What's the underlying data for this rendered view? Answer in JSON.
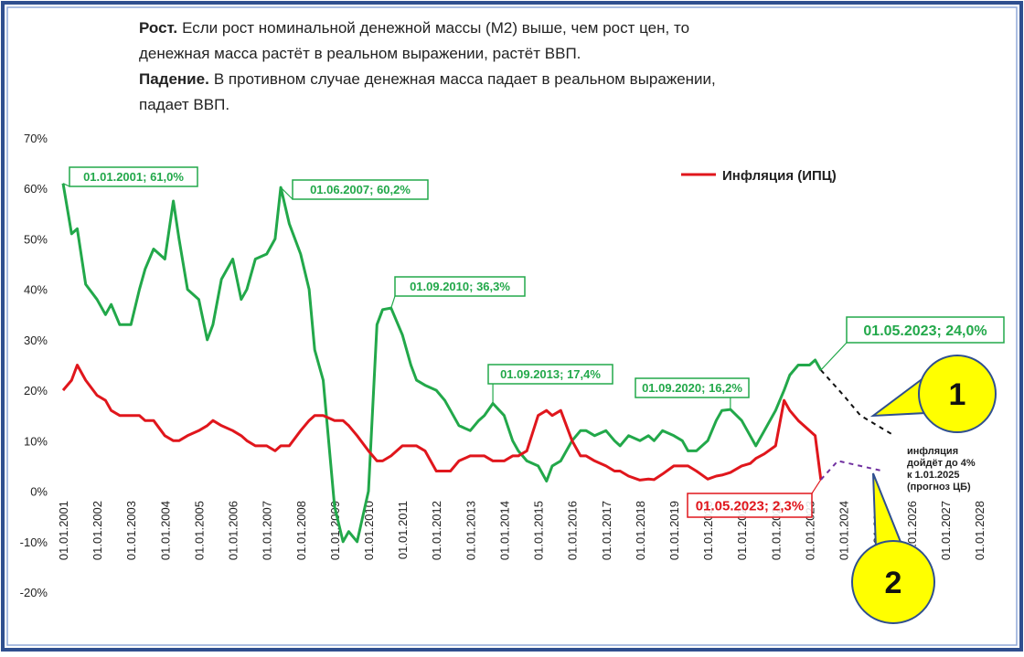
{
  "chart_data": {
    "type": "line",
    "header": [
      {
        "bold": "Рост.",
        "text": "Если рост номинальной денежной массы (M2) выше, чем рост цен,  то"
      },
      {
        "text": "денежная масса растёт в реальном выражении, растёт ВВП."
      },
      {
        "bold": "Падение.",
        "text": "В противном случае денежная масса падает в реальном выражении,"
      },
      {
        "text": "падает ВВП."
      }
    ],
    "x": [
      "01.01.2001",
      "01.04.2001",
      "01.06.2001",
      "01.09.2001",
      "01.01.2002",
      "01.04.2002",
      "01.06.2002",
      "01.09.2002",
      "01.01.2003",
      "01.04.2003",
      "01.06.2003",
      "01.09.2003",
      "01.01.2004",
      "01.04.2004",
      "01.06.2004",
      "01.09.2004",
      "01.01.2005",
      "01.04.2005",
      "01.06.2005",
      "01.09.2005",
      "01.01.2006",
      "01.04.2006",
      "01.06.2006",
      "01.09.2006",
      "01.01.2007",
      "01.04.2007",
      "01.06.2007",
      "01.09.2007",
      "01.01.2008",
      "01.04.2008",
      "01.06.2008",
      "01.09.2008",
      "01.01.2009",
      "01.04.2009",
      "01.06.2009",
      "01.09.2009",
      "01.01.2010",
      "01.04.2010",
      "01.06.2010",
      "01.09.2010",
      "01.01.2011",
      "01.04.2011",
      "01.06.2011",
      "01.09.2011",
      "01.01.2012",
      "01.04.2012",
      "01.06.2012",
      "01.09.2012",
      "01.01.2013",
      "01.04.2013",
      "01.06.2013",
      "01.09.2013",
      "01.01.2014",
      "01.04.2014",
      "01.06.2014",
      "01.09.2014",
      "01.01.2015",
      "01.04.2015",
      "01.06.2015",
      "01.09.2015",
      "01.01.2016",
      "01.04.2016",
      "01.06.2016",
      "01.09.2016",
      "01.01.2017",
      "01.04.2017",
      "01.06.2017",
      "01.09.2017",
      "01.01.2018",
      "01.04.2018",
      "01.06.2018",
      "01.09.2018",
      "01.01.2019",
      "01.04.2019",
      "01.06.2019",
      "01.09.2019",
      "01.01.2020",
      "01.04.2020",
      "01.06.2020",
      "01.09.2020",
      "01.01.2021",
      "01.04.2021",
      "01.06.2021",
      "01.09.2021",
      "01.01.2022",
      "01.04.2022",
      "01.06.2022",
      "01.09.2022",
      "01.01.2023",
      "01.03.2023",
      "01.05.2023"
    ],
    "series": [
      {
        "color": "#22a84a",
        "values": [
          61,
          51,
          52,
          41,
          38,
          35,
          37,
          33,
          33,
          40,
          44,
          48,
          46,
          57.5,
          50,
          40,
          38,
          30,
          33,
          42,
          46,
          38,
          40,
          46,
          47,
          50,
          60.2,
          53,
          47,
          40,
          28,
          22,
          -3,
          -10,
          -8,
          -10,
          0,
          33,
          36,
          36.3,
          31,
          25,
          22,
          21,
          20,
          18,
          16,
          13,
          12,
          14,
          15,
          17.4,
          15,
          10,
          8,
          6,
          5,
          2,
          5,
          6,
          10,
          12,
          12,
          11,
          12,
          10,
          9,
          11,
          10,
          11,
          10,
          12,
          11,
          10,
          8,
          8,
          10,
          14,
          16,
          16.2,
          14,
          11,
          9,
          12,
          16,
          20,
          23,
          25,
          25,
          26,
          24.0
        ]
      },
      {
        "name": "Инфляция (ИПЦ)",
        "color": "#e0161c",
        "values": [
          20,
          22,
          25,
          22,
          19,
          18,
          16,
          15,
          15,
          15,
          14,
          14,
          11,
          10,
          10,
          11,
          12,
          13,
          14,
          13,
          12,
          11,
          10,
          9,
          9,
          8,
          9,
          9,
          12,
          14,
          15,
          15,
          14,
          14,
          13,
          11,
          8,
          6,
          6,
          7,
          9,
          9,
          9,
          8,
          4,
          4,
          4,
          6,
          7,
          7,
          7,
          6,
          6,
          7,
          7,
          8,
          15,
          16,
          15,
          16,
          10,
          7,
          7,
          6,
          5,
          4,
          4,
          3,
          2.2,
          2.4,
          2.3,
          3.4,
          5,
          5,
          5,
          4,
          2.4,
          3,
          3.2,
          3.7,
          5,
          5.5,
          6.5,
          7.4,
          9,
          18,
          16,
          14,
          12,
          11,
          2.3
        ]
      },
      {
        "color": "#111111",
        "dashed": true,
        "x": [
          "01.05.2023",
          "01.01.2024",
          "01.07.2024",
          "01.01.2025",
          "01.07.2025"
        ],
        "values": [
          24,
          19,
          15,
          13,
          11
        ]
      },
      {
        "color": "#7030a0",
        "dashed": true,
        "x": [
          "01.05.2023",
          "01.11.2023",
          "01.07.2024",
          "01.03.2025"
        ],
        "values": [
          2.3,
          6,
          5,
          4
        ]
      }
    ],
    "xlim": [
      "01.01.2001",
      "01.01.2028"
    ],
    "xticks": [
      "01.01.2001",
      "01.01.2002",
      "01.01.2003",
      "01.01.2004",
      "01.01.2005",
      "01.01.2006",
      "01.01.2007",
      "01.01.2008",
      "01.01.2009",
      "01.01.2010",
      "01.01.2011",
      "01.01.2012",
      "01.01.2013",
      "01.01.2014",
      "01.01.2015",
      "01.01.2016",
      "01.01.2017",
      "01.01.2018",
      "01.01.2019",
      "01.01.2020",
      "01.01.2021",
      "01.01.2022",
      "01.01.2023",
      "01.01.2024",
      "01.01.2025",
      "01.01.2026",
      "01.01.2027",
      "01.01.2028"
    ],
    "ylim": [
      -20,
      70
    ],
    "yticks": [
      {
        "value": -20,
        "label": "-20%"
      },
      {
        "value": -10,
        "label": "-10%"
      },
      {
        "value": 0,
        "label": "0%"
      },
      {
        "value": 10,
        "label": "10%"
      },
      {
        "value": 20,
        "label": "20%"
      },
      {
        "value": 30,
        "label": "30%"
      },
      {
        "value": 40,
        "label": "40%"
      },
      {
        "value": 50,
        "label": "50%"
      },
      {
        "value": 60,
        "label": "60%"
      },
      {
        "value": 70,
        "label": "70%"
      }
    ],
    "grid": false,
    "annotations": [
      "01.01.2001; 61,0%",
      "01.06.2007; 60,2%",
      "01.09.2010; 36,3%",
      "01.09.2013; 17,4%",
      "01.09.2020; 16,2%",
      "01.05.2023; 24,0%",
      "01.05.2023; 2,3%"
    ],
    "forecast_note": [
      "инфляция",
      "дойдёт до 4%",
      "к 1.01.2025",
      "(прогноз ЦБ)"
    ],
    "callouts": [
      "1",
      "2"
    ]
  }
}
